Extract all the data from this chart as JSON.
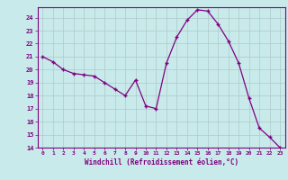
{
  "x": [
    0,
    1,
    2,
    3,
    4,
    5,
    6,
    7,
    8,
    9,
    10,
    11,
    12,
    13,
    14,
    15,
    16,
    17,
    18,
    19,
    20,
    21,
    22,
    23
  ],
  "y": [
    21.0,
    20.6,
    20.0,
    19.7,
    19.6,
    19.5,
    19.0,
    18.5,
    18.0,
    19.2,
    17.2,
    17.0,
    20.5,
    22.5,
    23.8,
    24.6,
    24.5,
    23.5,
    22.2,
    20.5,
    17.8,
    15.5,
    14.8,
    14.0
  ],
  "line_color": "#800080",
  "marker": "+",
  "bg_color": "#c8eaea",
  "grid_color": "#b0c8c8",
  "xlabel": "Windchill (Refroidissement éolien,°C)",
  "xlabel_color": "#800080",
  "tick_color": "#800080",
  "ylim": [
    14,
    24.8
  ],
  "xlim": [
    -0.5,
    23.5
  ],
  "yticks": [
    14,
    15,
    16,
    17,
    18,
    19,
    20,
    21,
    22,
    23,
    24
  ],
  "xticks": [
    0,
    1,
    2,
    3,
    4,
    5,
    6,
    7,
    8,
    9,
    10,
    11,
    12,
    13,
    14,
    15,
    16,
    17,
    18,
    19,
    20,
    21,
    22,
    23
  ]
}
